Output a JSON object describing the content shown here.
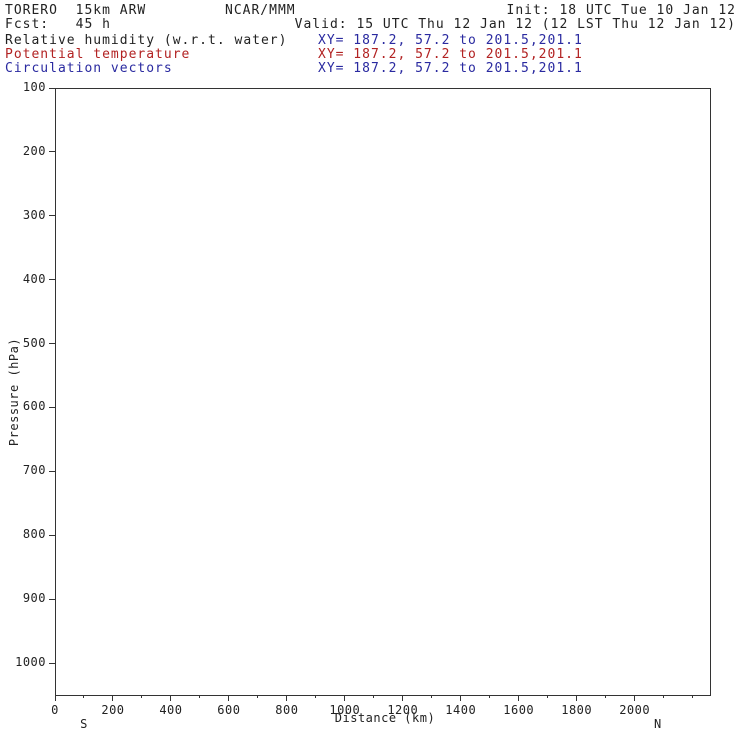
{
  "header": {
    "left1": "TORERO  15km ARW",
    "center1": "NCAR/MMM",
    "right1": "Init: 18 UTC Tue 10 Jan 12",
    "left2": "Fcst:   45 h",
    "right2": "Valid: 15 UTC Thu 12 Jan 12 (12 LST Thu 12 Jan 12)"
  },
  "fields": [
    {
      "label": "Relative humidity (w.r.t. water)",
      "xy": "XY= 187.2, 57.2 to 201.5,201.1",
      "label_color": "#222222",
      "xy_color": "#2a2aa0"
    },
    {
      "label": "Potential temperature",
      "xy": "XY= 187.2, 57.2 to 201.5,201.1",
      "label_color": "#b22222",
      "xy_color": "#b22222"
    },
    {
      "label": "Circulation vectors",
      "xy": "XY= 187.2, 57.2 to 201.5,201.1",
      "label_color": "#2a2aa0",
      "xy_color": "#2a2aa0"
    }
  ],
  "chart_data": {
    "type": "line",
    "subtype": "vertical-cross-section",
    "title": "",
    "xlabel": "Distance (km)",
    "ylabel": "Pressure (hPa)",
    "xlim": [
      0,
      2260
    ],
    "ylim": [
      1050,
      100
    ],
    "x_major_ticks": [
      0,
      200,
      400,
      600,
      800,
      1000,
      1200,
      1400,
      1600,
      1800,
      2000
    ],
    "x_minor_step": 100,
    "y_ticks": [
      100,
      200,
      300,
      400,
      500,
      600,
      700,
      800,
      900,
      1000
    ],
    "endpoints": [
      {
        "label": "S",
        "km": 100
      },
      {
        "label": "N",
        "km": 2080
      }
    ],
    "grid": false,
    "legend": "none",
    "series": [],
    "note_plot_area_empty": true
  }
}
